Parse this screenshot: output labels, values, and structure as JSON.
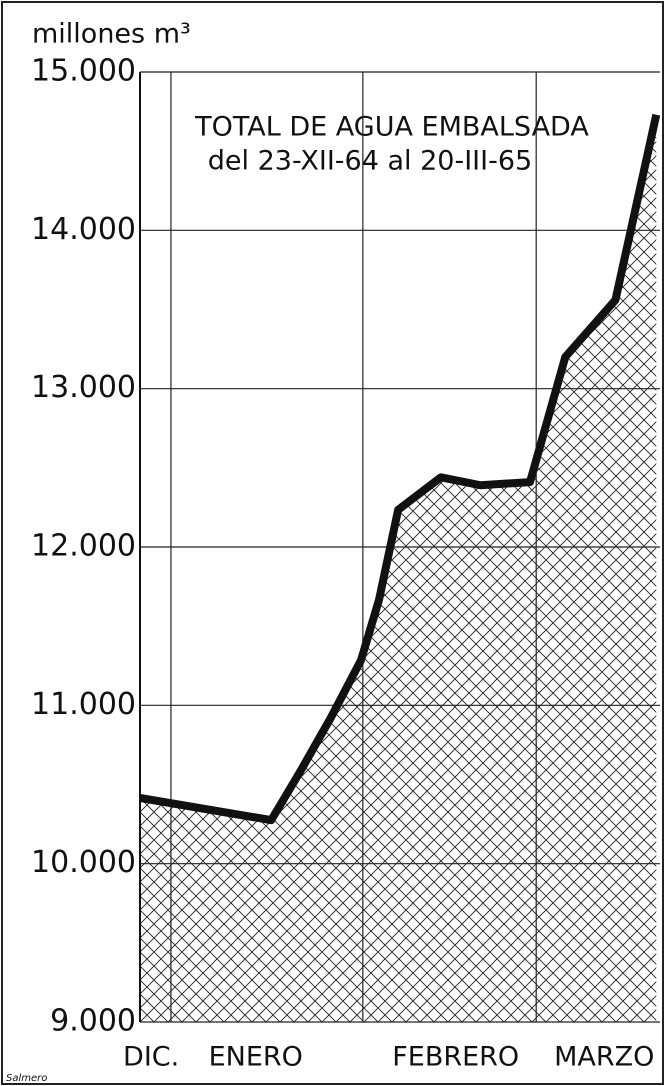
{
  "chart_data": {
    "type": "area",
    "title": [
      "TOTAL DE AGUA EMBALSADA",
      "del 23-XII-64 al 20-III-65"
    ],
    "ylabel": "millones m³",
    "signature": "Salmero",
    "x": [
      4,
      25.2,
      30,
      34.8,
      39.7,
      42.6,
      45.7,
      52.6,
      59,
      67,
      72.7,
      80.8,
      87.4
    ],
    "values": [
      10415,
      10275,
      10590,
      10920,
      11285,
      11665,
      12235,
      12440,
      12390,
      12410,
      13200,
      13560,
      14730
    ],
    "color": "#111111",
    "xlim": [
      4,
      88
    ],
    "xgrid": [
      9,
      40,
      68
    ],
    "month_labels": [
      {
        "value": 5.8,
        "label": "DIC."
      },
      {
        "value": 22.7,
        "label": "ENERO"
      },
      {
        "value": 55,
        "label": "FEBRERO"
      },
      {
        "value": 79,
        "label": "MARZO"
      }
    ],
    "ylim": [
      9000,
      15000
    ],
    "yticks": [
      {
        "value": 9000,
        "label": "9.000"
      },
      {
        "value": 10000,
        "label": "10.000"
      },
      {
        "value": 11000,
        "label": "11.000"
      },
      {
        "value": 12000,
        "label": "12.000"
      },
      {
        "value": 13000,
        "label": "13.000"
      },
      {
        "value": 14000,
        "label": "14.000"
      },
      {
        "value": 15000,
        "label": "15.000"
      }
    ],
    "grid": true
  }
}
